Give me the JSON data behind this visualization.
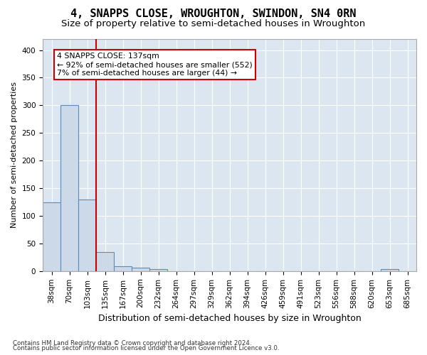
{
  "title": "4, SNAPPS CLOSE, WROUGHTON, SWINDON, SN4 0RN",
  "subtitle": "Size of property relative to semi-detached houses in Wroughton",
  "xlabel": "Distribution of semi-detached houses by size in Wroughton",
  "ylabel": "Number of semi-detached properties",
  "footnote1": "Contains HM Land Registry data © Crown copyright and database right 2024.",
  "footnote2": "Contains public sector information licensed under the Open Government Licence v3.0.",
  "bin_labels": [
    "38sqm",
    "70sqm",
    "103sqm",
    "135sqm",
    "167sqm",
    "200sqm",
    "232sqm",
    "264sqm",
    "297sqm",
    "329sqm",
    "362sqm",
    "394sqm",
    "426sqm",
    "459sqm",
    "491sqm",
    "523sqm",
    "556sqm",
    "588sqm",
    "620sqm",
    "653sqm",
    "685sqm"
  ],
  "values": [
    125,
    300,
    130,
    35,
    9,
    6,
    4,
    0,
    0,
    0,
    0,
    0,
    0,
    0,
    0,
    0,
    0,
    0,
    0,
    4,
    0
  ],
  "bar_color": "#ccd9e8",
  "bar_edge_color": "#5b8db8",
  "vline_color": "#cc0000",
  "vline_position": 2.5,
  "annotation_line1": "4 SNAPPS CLOSE: 137sqm",
  "annotation_line2": "← 92% of semi-detached houses are smaller (552)",
  "annotation_line3": "7% of semi-detached houses are larger (44) →",
  "annotation_box_color": "#cc0000",
  "ylim": [
    0,
    420
  ],
  "yticks": [
    0,
    50,
    100,
    150,
    200,
    250,
    300,
    350,
    400
  ],
  "plot_bg_color": "#dce6f0",
  "title_fontsize": 11,
  "subtitle_fontsize": 9.5,
  "tick_fontsize": 7.5
}
